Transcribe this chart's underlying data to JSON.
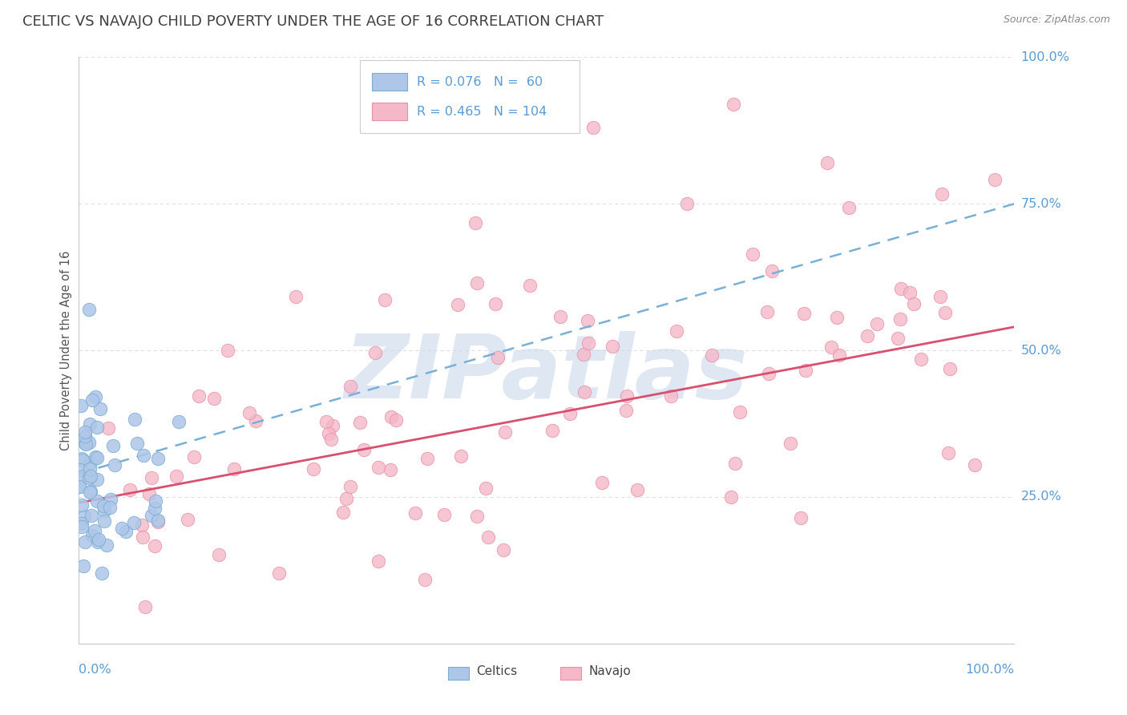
{
  "title": "CELTIC VS NAVAJO CHILD POVERTY UNDER THE AGE OF 16 CORRELATION CHART",
  "source": "Source: ZipAtlas.com",
  "ylabel": "Child Poverty Under the Age of 16",
  "celtics_color": "#aec6e8",
  "celtics_edge_color": "#7aadd4",
  "navajo_color": "#f5b8c8",
  "navajo_edge_color": "#e890a8",
  "trendline_celtics_color": "#7ab0d8",
  "trendline_navajo_color": "#d85070",
  "watermark_text": "ZIPatlas",
  "watermark_color": "#c8d8ea",
  "celtics_R": 0.076,
  "celtics_N": 60,
  "navajo_R": 0.465,
  "navajo_N": 104,
  "grid_color": "#d8dce8",
  "background_color": "#ffffff",
  "title_color": "#404040",
  "axis_label_color": "#5b9bd5",
  "legend_text_color": "#5b9bd5",
  "legend_r_color": "#404040",
  "ytick_positions": [
    0.25,
    0.5,
    0.75,
    1.0
  ],
  "ytick_labels": [
    "25.0%",
    "50.0%",
    "75.0%",
    "100.0%"
  ],
  "xlim": [
    0.0,
    1.0
  ],
  "ylim": [
    0.0,
    1.0
  ]
}
